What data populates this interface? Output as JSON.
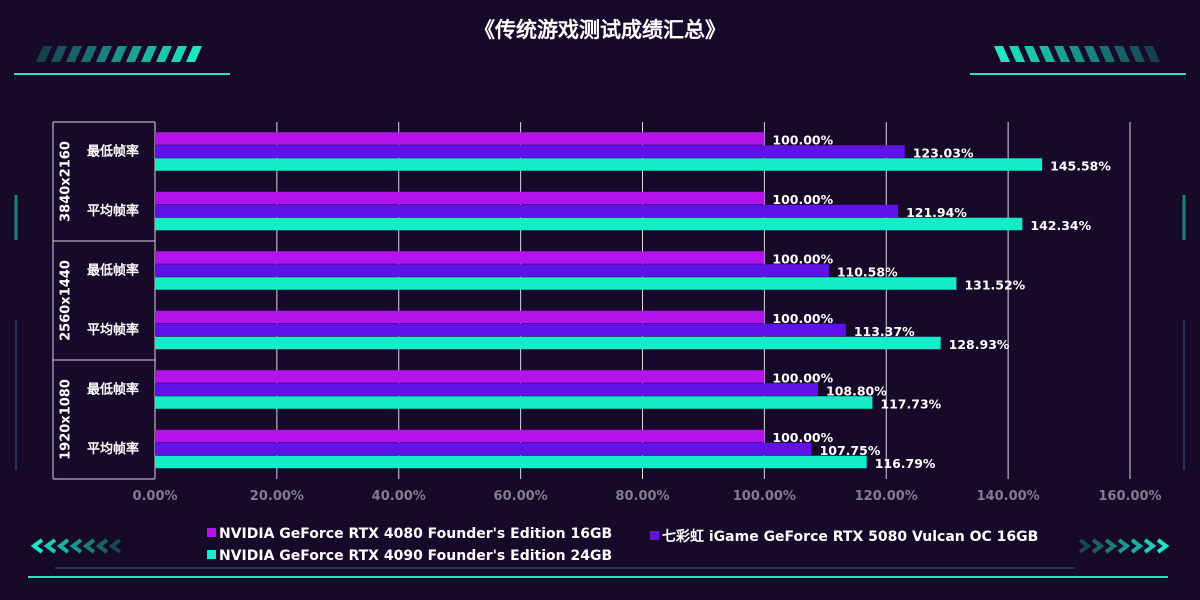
{
  "colors": {
    "background": "#16092a",
    "accent": "#1de6c2",
    "grid": "#d9d9de",
    "text": "#ffffff",
    "tick_text": "#7f7f8c"
  },
  "chart_data": {
    "type": "bar",
    "orientation": "horizontal",
    "title": "《传统游戏测试成绩汇总》",
    "xlim": [
      0,
      160
    ],
    "xticks": [
      0,
      20,
      40,
      60,
      80,
      100,
      120,
      140,
      160
    ],
    "xtick_labels": [
      "0.00%",
      "20.00%",
      "40.00%",
      "60.00%",
      "80.00%",
      "100.00%",
      "120.00%",
      "140.00%",
      "160.00%"
    ],
    "groups": [
      {
        "label": "3840x2160",
        "categories": [
          "最低帧率",
          "平均帧率"
        ]
      },
      {
        "label": "2560x1440",
        "categories": [
          "最低帧率",
          "平均帧率"
        ]
      },
      {
        "label": "1920x1080",
        "categories": [
          "最低帧率",
          "平均帧率"
        ]
      }
    ],
    "series": [
      {
        "name": "NVIDIA  GeForce RTX 4080 Founder's Edition 16GB",
        "color": "#b413ee",
        "values": [
          100.0,
          100.0,
          100.0,
          100.0,
          100.0,
          100.0
        ],
        "labels": [
          "100.00%",
          "100.00%",
          "100.00%",
          "100.00%",
          "100.00%",
          "100.00%"
        ]
      },
      {
        "name": "七彩虹 iGame GeForce RTX 5080 Vulcan OC 16GB",
        "color": "#6111ea",
        "values": [
          123.03,
          121.94,
          110.58,
          113.37,
          108.8,
          107.75
        ],
        "labels": [
          "123.03%",
          "121.94%",
          "110.58%",
          "113.37%",
          "108.80%",
          "107.75%"
        ]
      },
      {
        "name": "NVIDIA  GeForce RTX 4090 Founder's Edition 24GB",
        "color": "#15ecc8",
        "values": [
          145.58,
          142.34,
          131.52,
          128.93,
          117.73,
          116.79
        ],
        "labels": [
          "145.58%",
          "142.34%",
          "131.52%",
          "128.93%",
          "117.73%",
          "116.79%"
        ]
      }
    ],
    "legend_position": "bottom"
  }
}
